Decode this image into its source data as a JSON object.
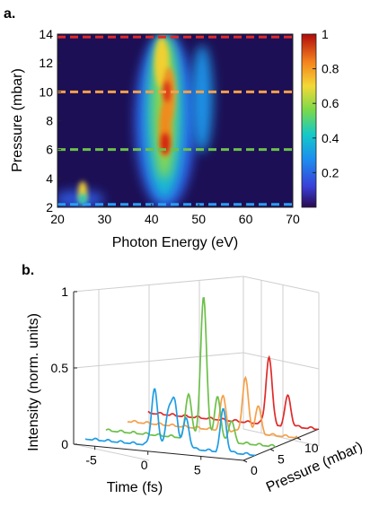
{
  "chart_data": [
    {
      "type": "heatmap",
      "panel_label": "a.",
      "xlabel": "Photon Energy (eV)",
      "ylabel": "Pressure (mbar)",
      "xlim": [
        20,
        70
      ],
      "ylim": [
        2,
        14
      ],
      "x_ticks": [
        20,
        30,
        40,
        50,
        60,
        70
      ],
      "y_ticks": [
        2,
        4,
        6,
        8,
        10,
        12,
        14
      ],
      "colorbar": {
        "range": [
          0,
          1
        ],
        "ticks": [
          0.2,
          0.4,
          0.6,
          0.8,
          1
        ],
        "colormap": "jet"
      },
      "dashed_lines": [
        {
          "pressure": 2.2,
          "color": "#2a9df4"
        },
        {
          "pressure": 6,
          "color": "#6cc04a"
        },
        {
          "pressure": 10,
          "color": "#f5a04a"
        },
        {
          "pressure": 13.8,
          "color": "#e02a2a"
        }
      ],
      "features": [
        {
          "energy": 43,
          "pressure": 6.3,
          "intensity": 1.0
        },
        {
          "energy": 44,
          "pressure": 10,
          "intensity": 0.9
        },
        {
          "energy": 42,
          "pressure": 12,
          "intensity": 0.75
        },
        {
          "energy": 26,
          "pressure": 2.8,
          "intensity": 0.55
        }
      ]
    },
    {
      "type": "line",
      "panel_label": "b.",
      "xlabel": "Time (fs)",
      "ylabel": "Intensity (norm. units)",
      "zlabel": "Pressure (mbar)",
      "xlim": [
        -7,
        9
      ],
      "ylim": [
        0,
        1
      ],
      "zlim": [
        0,
        14
      ],
      "x_ticks": [
        -5,
        0,
        5
      ],
      "y_ticks": [
        0,
        0.5,
        1
      ],
      "z_ticks": [
        0,
        5,
        10
      ],
      "series": [
        {
          "pressure": 2.2,
          "color": "#1f9de4",
          "peaks": [
            [
              -0.5,
              0.38
            ],
            [
              0.8,
              0.22
            ],
            [
              1.4,
              0.3
            ],
            [
              2.5,
              0.2
            ],
            [
              6,
              0.28
            ]
          ]
        },
        {
          "pressure": 6,
          "color": "#6cc04a",
          "peaks": [
            [
              0.8,
              0.3
            ],
            [
              2.2,
              0.95
            ],
            [
              3.5,
              0.3
            ],
            [
              4.8,
              0.14
            ]
          ]
        },
        {
          "pressure": 10,
          "color": "#f5a04a",
          "peaks": [
            [
              2.0,
              0.22
            ],
            [
              4.1,
              0.36
            ],
            [
              5.3,
              0.18
            ]
          ]
        },
        {
          "pressure": 13.8,
          "color": "#e02a2a",
          "peaks": [
            [
              4.4,
              0.45
            ],
            [
              6.2,
              0.2
            ]
          ]
        }
      ]
    }
  ]
}
